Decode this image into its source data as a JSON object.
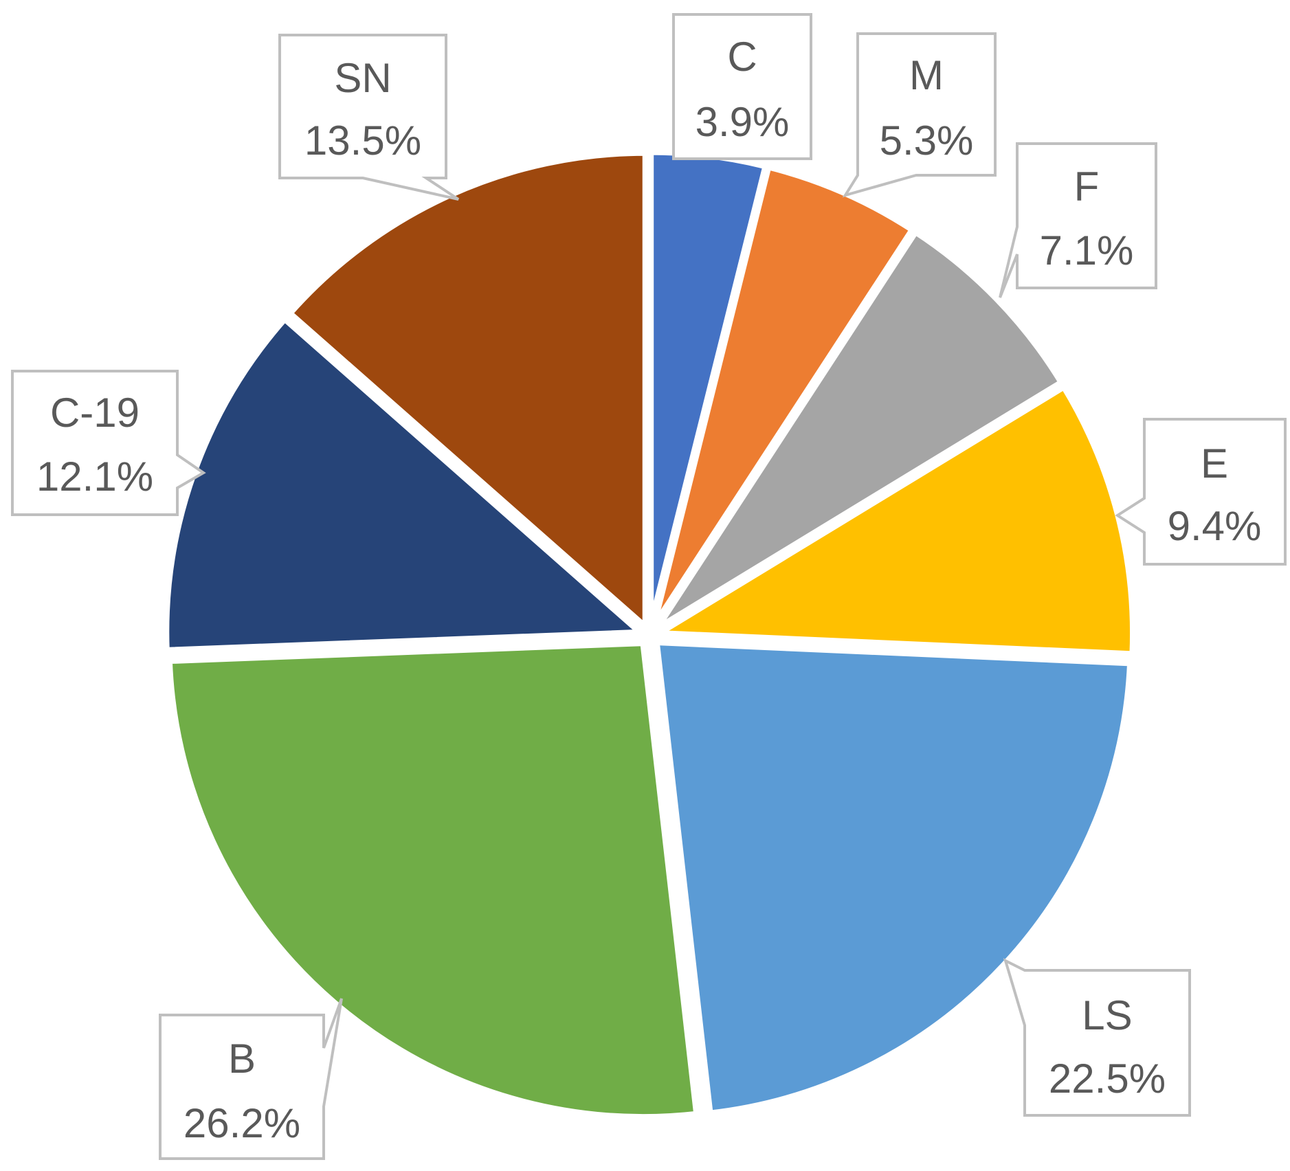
{
  "chart_data": {
    "type": "pie",
    "start_angle_deg": 0,
    "direction": "clockwise",
    "slices": [
      {
        "label": "C",
        "value": 3.9,
        "display": "3.9%",
        "color": "#4472C4"
      },
      {
        "label": "M",
        "value": 5.3,
        "display": "5.3%",
        "color": "#ED7D31"
      },
      {
        "label": "F",
        "value": 7.1,
        "display": "7.1%",
        "color": "#A5A5A5"
      },
      {
        "label": "E",
        "value": 9.4,
        "display": "9.4%",
        "color": "#FFC000"
      },
      {
        "label": "LS",
        "value": 22.5,
        "display": "22.5%",
        "color": "#5B9BD5"
      },
      {
        "label": "B",
        "value": 26.2,
        "display": "26.2%",
        "color": "#70AD47"
      },
      {
        "label": "C-19",
        "value": 12.1,
        "display": "12.1%",
        "color": "#264478"
      },
      {
        "label": "SN",
        "value": 13.5,
        "display": "13.5%",
        "color": "#9E480E"
      }
    ],
    "data_labels": "category-and-percent callouts"
  }
}
